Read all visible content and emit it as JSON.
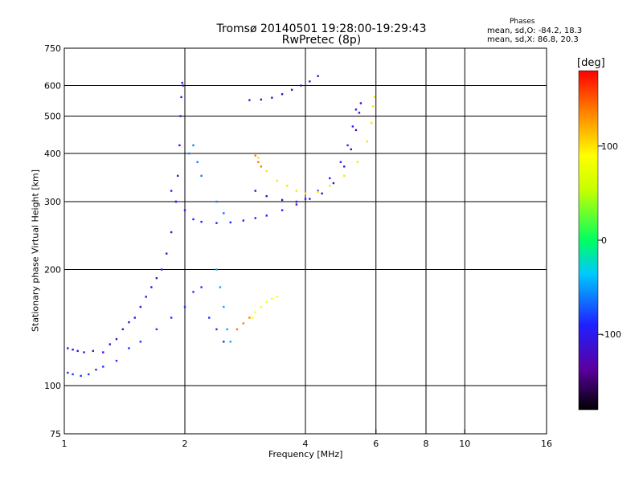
{
  "chart_data": {
    "type": "scatter",
    "title": "Tromsø 20140501 19:28:00-19:29:43",
    "subtitle": "RwPretec (8p)",
    "xlabel": "Frequency [MHz]",
    "ylabel": "Stationary phase Virtual Height [km]",
    "x_scale": "log",
    "y_scale": "log",
    "xlim": [
      1,
      16
    ],
    "ylim": [
      75,
      750
    ],
    "x_ticks": [
      1,
      2,
      4,
      6,
      8,
      10,
      16
    ],
    "y_ticks": [
      75,
      100,
      200,
      300,
      400,
      500,
      600,
      750
    ],
    "x_grid": [
      2,
      4,
      6,
      8,
      10
    ],
    "y_grid": [
      100,
      200,
      300,
      400,
      500,
      600
    ],
    "legend": {
      "title": "Phases",
      "mean_o": "mean, sd,O: -84.2, 18.3",
      "mean_x": "mean, sd,X:  86.8, 20.3"
    },
    "colorbar": {
      "label": "[deg]",
      "range": [
        -180,
        180
      ],
      "ticks": [
        100,
        0,
        -100
      ]
    },
    "series": [
      {
        "color_deg": -110,
        "points": [
          [
            1.02,
            125
          ],
          [
            1.05,
            124
          ],
          [
            1.08,
            123
          ],
          [
            1.12,
            122
          ],
          [
            1.18,
            123
          ],
          [
            1.25,
            122
          ],
          [
            1.3,
            128
          ],
          [
            1.35,
            132
          ],
          [
            1.4,
            140
          ],
          [
            1.45,
            146
          ],
          [
            1.5,
            150
          ],
          [
            1.55,
            160
          ],
          [
            1.6,
            170
          ],
          [
            1.65,
            180
          ],
          [
            1.7,
            190
          ],
          [
            1.75,
            200
          ],
          [
            1.8,
            220
          ],
          [
            1.85,
            250
          ],
          [
            1.9,
            300
          ],
          [
            1.92,
            350
          ],
          [
            1.94,
            420
          ],
          [
            1.95,
            500
          ],
          [
            1.96,
            560
          ],
          [
            1.97,
            610
          ],
          [
            1.98,
            600
          ]
        ]
      },
      {
        "color_deg": -85,
        "points": [
          [
            1.02,
            108
          ],
          [
            1.05,
            107
          ],
          [
            1.1,
            106
          ],
          [
            1.15,
            107
          ],
          [
            1.2,
            110
          ],
          [
            1.25,
            112
          ],
          [
            1.35,
            116
          ],
          [
            1.45,
            125
          ],
          [
            1.55,
            130
          ],
          [
            1.7,
            140
          ],
          [
            1.85,
            150
          ],
          [
            2.0,
            160
          ],
          [
            2.1,
            175
          ],
          [
            2.2,
            180
          ],
          [
            2.3,
            150
          ],
          [
            2.4,
            140
          ],
          [
            2.5,
            130
          ]
        ]
      },
      {
        "color_deg": -90,
        "points": [
          [
            1.85,
            320
          ],
          [
            1.9,
            300
          ],
          [
            2.0,
            285
          ],
          [
            2.1,
            270
          ],
          [
            2.2,
            266
          ],
          [
            2.4,
            264
          ],
          [
            2.6,
            265
          ],
          [
            2.8,
            268
          ],
          [
            3.0,
            272
          ],
          [
            3.2,
            276
          ],
          [
            3.5,
            285
          ],
          [
            3.8,
            295
          ],
          [
            4.0,
            305
          ],
          [
            4.3,
            320
          ],
          [
            4.6,
            345
          ],
          [
            4.9,
            380
          ],
          [
            5.1,
            420
          ],
          [
            5.25,
            470
          ],
          [
            5.35,
            520
          ]
        ]
      },
      {
        "color_deg": -125,
        "points": [
          [
            3.0,
            320
          ],
          [
            3.2,
            310
          ],
          [
            3.5,
            303
          ],
          [
            3.8,
            300
          ],
          [
            4.1,
            305
          ],
          [
            4.4,
            315
          ],
          [
            4.7,
            335
          ],
          [
            5.0,
            370
          ],
          [
            5.2,
            410
          ],
          [
            5.35,
            460
          ],
          [
            5.45,
            510
          ],
          [
            5.5,
            540
          ]
        ]
      },
      {
        "color_deg": -120,
        "points": [
          [
            2.9,
            550
          ],
          [
            3.1,
            552
          ],
          [
            3.3,
            558
          ],
          [
            3.5,
            570
          ],
          [
            3.7,
            585
          ],
          [
            3.9,
            600
          ],
          [
            4.1,
            615
          ],
          [
            4.3,
            635
          ]
        ]
      },
      {
        "color_deg": -60,
        "points": [
          [
            2.1,
            420
          ],
          [
            2.05,
            400
          ],
          [
            2.15,
            380
          ],
          [
            2.2,
            350
          ],
          [
            2.4,
            300
          ],
          [
            2.5,
            280
          ]
        ]
      },
      {
        "color_deg": 100,
        "points": [
          [
            3.05,
            390
          ],
          [
            3.2,
            360
          ],
          [
            3.4,
            340
          ],
          [
            3.6,
            330
          ],
          [
            3.8,
            320
          ],
          [
            4.0,
            315
          ],
          [
            4.3,
            318
          ],
          [
            4.6,
            330
          ],
          [
            5.0,
            350
          ],
          [
            5.4,
            380
          ],
          [
            5.7,
            430
          ],
          [
            5.85,
            480
          ],
          [
            5.9,
            530
          ],
          [
            5.95,
            560
          ]
        ]
      },
      {
        "color_deg": 140,
        "points": [
          [
            3.0,
            395
          ],
          [
            3.05,
            380
          ],
          [
            3.1,
            370
          ],
          [
            2.7,
            140
          ],
          [
            2.8,
            145
          ],
          [
            2.9,
            150
          ]
        ]
      },
      {
        "color_deg": 90,
        "points": [
          [
            2.95,
            150
          ],
          [
            3.0,
            155
          ],
          [
            3.1,
            160
          ],
          [
            3.2,
            165
          ],
          [
            3.3,
            168
          ],
          [
            3.4,
            170
          ]
        ]
      },
      {
        "color_deg": -45,
        "points": [
          [
            2.4,
            200
          ],
          [
            2.45,
            180
          ],
          [
            2.5,
            160
          ],
          [
            2.55,
            140
          ],
          [
            2.6,
            130
          ]
        ]
      }
    ]
  }
}
